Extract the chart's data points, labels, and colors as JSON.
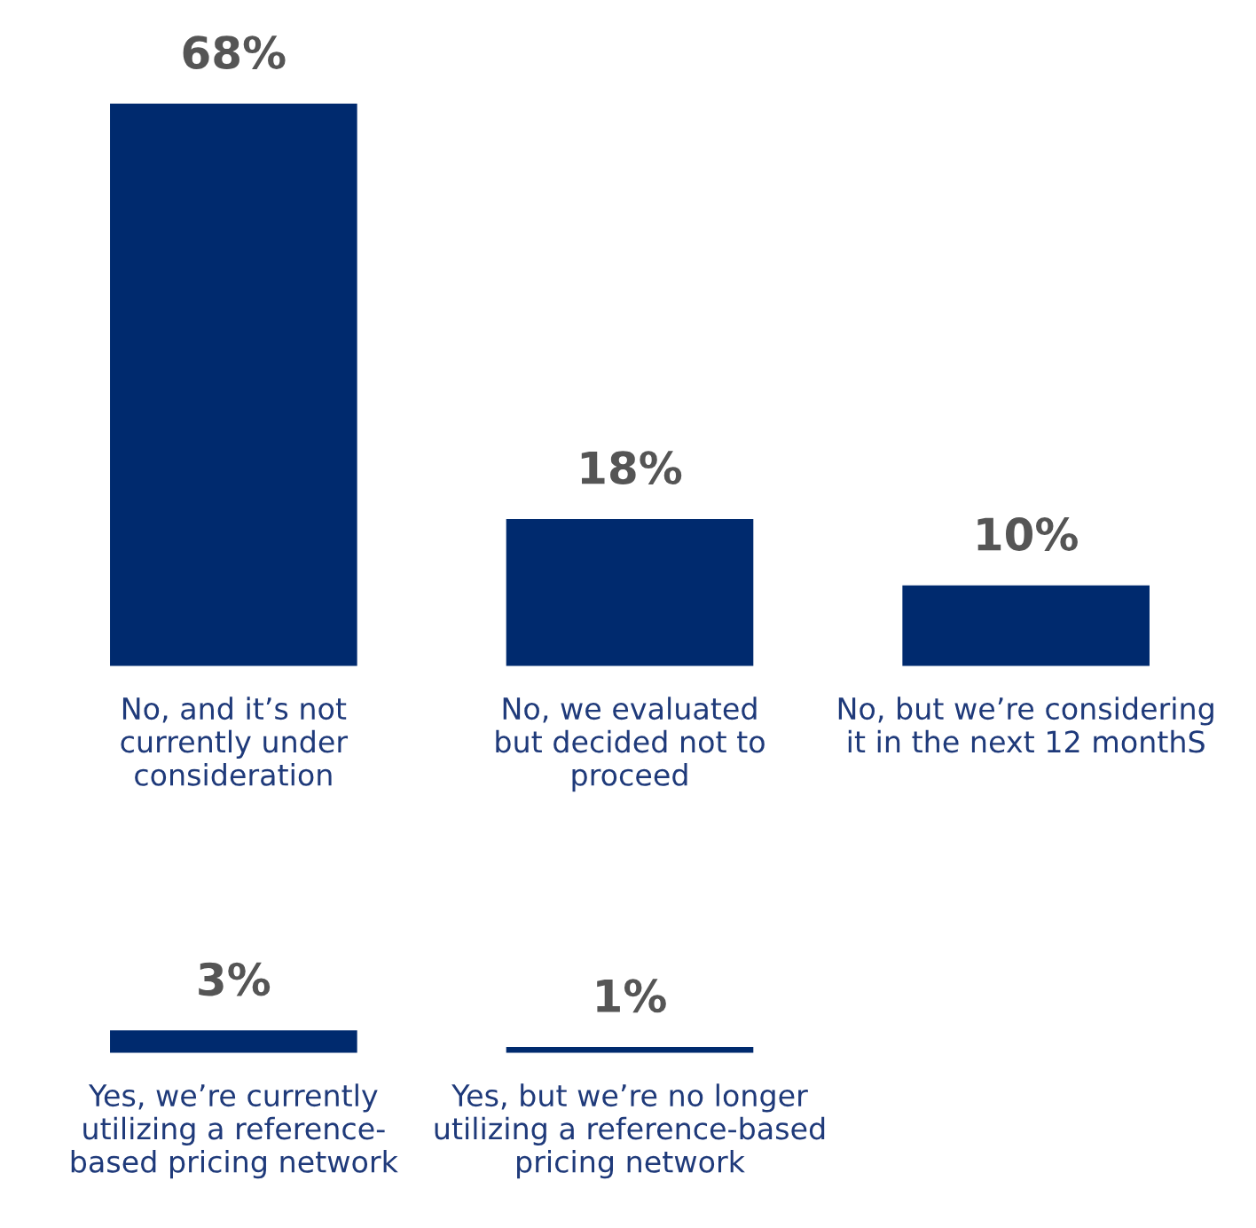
{
  "chart_data": [
    {
      "type": "bar",
      "categories": [
        "No, and it’s not\ncurrently under\nconsideration",
        "No, we evaluated\nbut decided not to\nproceed",
        "No, but we’re considering\nit in the next 12 monthS"
      ],
      "values": [
        68,
        18,
        10
      ],
      "value_labels": [
        "68%",
        "18%",
        "10%"
      ],
      "color": "#002a6e",
      "tick_labels": "x",
      "grid": false,
      "legend": false
    },
    {
      "type": "bar",
      "categories": [
        "Yes, we’re currently\nutilizing a reference-\nbased pricing network",
        "Yes, but we’re no longer\nutilizing a reference-based\npricing network"
      ],
      "values": [
        3,
        1
      ],
      "value_labels": [
        "3%",
        "1%"
      ],
      "color": "#002a6e",
      "tick_labels": "x",
      "grid": false,
      "legend": false
    }
  ]
}
